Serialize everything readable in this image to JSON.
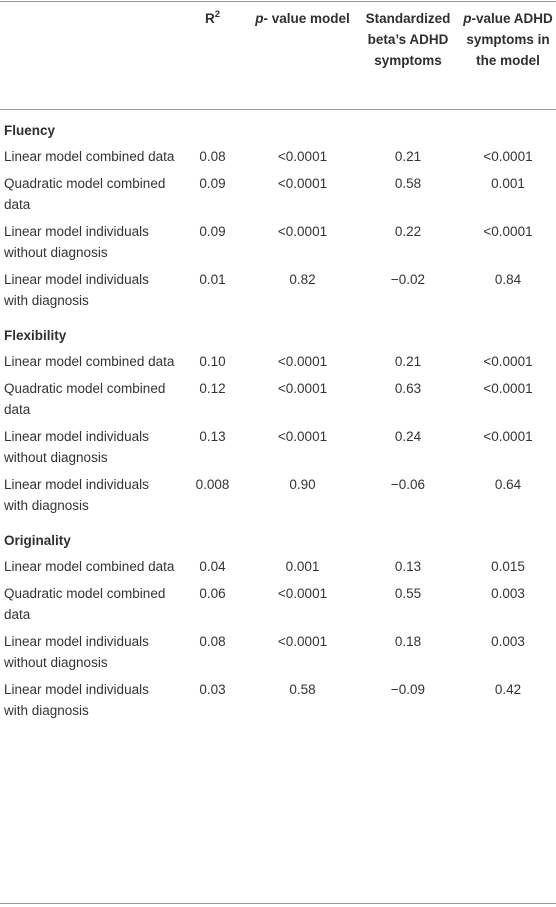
{
  "header": {
    "r2": "R",
    "r2_sup": "2",
    "pvalue_model_ital": "p",
    "pvalue_model_rest": "- value model",
    "std_beta": "Standardized beta’s ADHD symptoms",
    "pvalue_adhd_ital": "p",
    "pvalue_adhd_rest": "-value ADHD symptoms in the model"
  },
  "sections": [
    {
      "title": "Fluency",
      "rows": [
        {
          "model": "Linear model combined data",
          "r2": "0.08",
          "p_model": "<0.0001",
          "beta": "0.21",
          "p_adhd": "<0.0001"
        },
        {
          "model": "Quadratic model combined data",
          "r2": "0.09",
          "p_model": "<0.0001",
          "beta": "0.58",
          "p_adhd": "0.001"
        },
        {
          "model": "Linear model individuals without diagnosis",
          "r2": "0.09",
          "p_model": "<0.0001",
          "beta": "0.22",
          "p_adhd": "<0.0001"
        },
        {
          "model": "Linear model individuals with diagnosis",
          "r2": "0.01",
          "p_model": "0.82",
          "beta": "−0.02",
          "p_adhd": "0.84"
        }
      ]
    },
    {
      "title": "Flexibility",
      "rows": [
        {
          "model": "Linear model combined data",
          "r2": "0.10",
          "p_model": "<0.0001",
          "beta": "0.21",
          "p_adhd": "<0.0001"
        },
        {
          "model": "Quadratic model combined data",
          "r2": "0.12",
          "p_model": "<0.0001",
          "beta": "0.63",
          "p_adhd": "<0.0001"
        },
        {
          "model": "Linear model individuals without diagnosis",
          "r2": "0.13",
          "p_model": "<0.0001",
          "beta": "0.24",
          "p_adhd": "<0.0001"
        },
        {
          "model": "Linear model individuals with diagnosis",
          "r2": "0.008",
          "p_model": "0.90",
          "beta": "−0.06",
          "p_adhd": "0.64"
        }
      ]
    },
    {
      "title": "Originality",
      "rows": [
        {
          "model": "Linear model combined data",
          "r2": "0.04",
          "p_model": "0.001",
          "beta": "0.13",
          "p_adhd": "0.015"
        },
        {
          "model": "Quadratic model combined data",
          "r2": "0.06",
          "p_model": "<0.0001",
          "beta": "0.55",
          "p_adhd": "0.003"
        },
        {
          "model": "Linear model individuals without diagnosis",
          "r2": "0.08",
          "p_model": "<0.0001",
          "beta": "0.18",
          "p_adhd": "0.003"
        },
        {
          "model": "Linear model individuals with diagnosis",
          "r2": "0.03",
          "p_model": "0.58",
          "beta": "−0.09",
          "p_adhd": "0.42"
        }
      ]
    }
  ]
}
